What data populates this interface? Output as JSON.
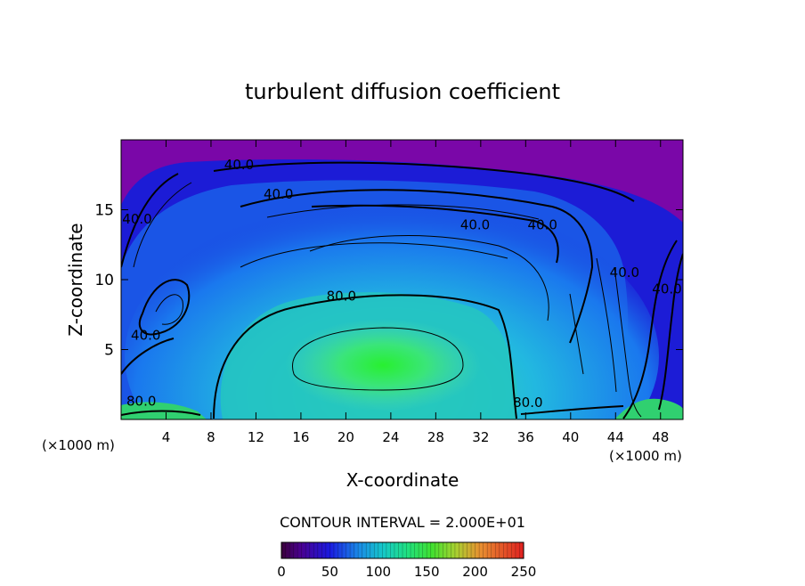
{
  "chart_data": {
    "type": "heatmap",
    "title": "turbulent diffusion coefficient",
    "xlabel": "X-coordinate",
    "ylabel": "Z-coordinate",
    "x_unit_left": "(×1000 m)",
    "x_unit_right": "(×1000 m)",
    "xlim": [
      0,
      50
    ],
    "ylim": [
      0,
      20
    ],
    "x_ticks": [
      4,
      8,
      12,
      16,
      20,
      24,
      28,
      32,
      36,
      40,
      44,
      48
    ],
    "x_tick_labels": [
      "4",
      "8",
      "12",
      "16",
      "20",
      "24",
      "28",
      "32",
      "36",
      "40",
      "44",
      "48"
    ],
    "y_ticks": [
      5,
      10,
      15
    ],
    "y_tick_labels": [
      "5",
      "10",
      "15"
    ],
    "contour_interval_text": "CONTOUR INTERVAL = 2.000E+01",
    "contour_labels": [
      {
        "text": "40.0",
        "x": 10.5,
        "z": 17.9
      },
      {
        "text": "40.0",
        "x": 14.0,
        "z": 15.8
      },
      {
        "text": "40.0",
        "x": 31.5,
        "z": 13.6
      },
      {
        "text": "40.0",
        "x": 37.5,
        "z": 13.6
      },
      {
        "text": "40.0",
        "x": 1.0,
        "z": 14.0
      },
      {
        "text": "40.0",
        "x": 2.2,
        "z": 5.7
      },
      {
        "text": "40.0",
        "x": 44.8,
        "z": 10.2
      },
      {
        "text": "40.0",
        "x": 48.8,
        "z": 9.0
      },
      {
        "text": "80.0",
        "x": 19.6,
        "z": 8.5
      },
      {
        "text": "80.0",
        "x": 36.2,
        "z": 0.9
      },
      {
        "text": "80.0",
        "x": 1.8,
        "z": 1.0
      }
    ],
    "colorbar": {
      "min": 0,
      "max": 250,
      "ticks": [
        0,
        50,
        100,
        150,
        200,
        250
      ],
      "tick_labels": [
        "0",
        "50",
        "100",
        "150",
        "200",
        "250"
      ]
    },
    "colors": {
      "top_background": "#7a07a8",
      "low_values": "#1a1ad8",
      "mid_values": "#16b4e6",
      "high_values": "#1ee682",
      "core_values": "#22ee3c"
    }
  }
}
